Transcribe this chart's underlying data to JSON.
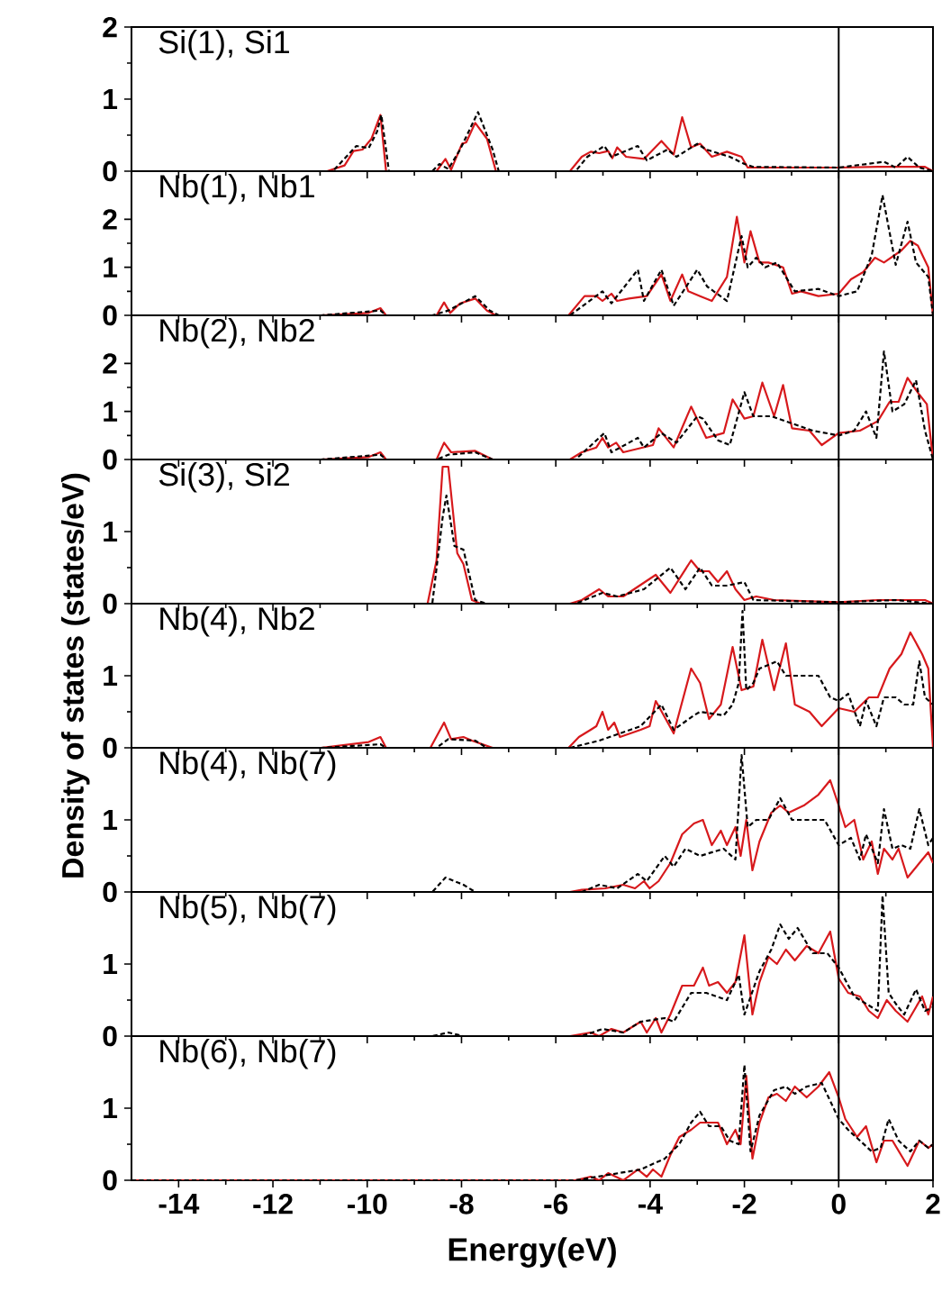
{
  "chart_data": [
    {
      "type": "line",
      "title": "Si(1), Si1",
      "xlim": [
        -15,
        2
      ],
      "xticks": [
        -14,
        -12,
        -10,
        -8,
        -6,
        -4,
        -2,
        0,
        2
      ],
      "ylim": [
        0,
        2
      ],
      "yticks": [
        0,
        1,
        2
      ],
      "tick_labels": "y",
      "ref_lines": [
        {
          "axis": "x",
          "value": 0,
          "color": "#000000"
        }
      ],
      "series": [
        {
          "color": "#d7191c",
          "line_style": "solid",
          "x": [
            -15,
            -10.85,
            -10.48,
            -10.29,
            -10.1,
            -9.91,
            -9.72,
            -9.6,
            -8.53,
            -8.34,
            -8.22,
            -7.99,
            -7.9,
            -7.71,
            -7.46,
            -7.27,
            -5.7,
            -5.45,
            -5.26,
            -5.08,
            -4.89,
            -4.8,
            -4.7,
            -4.51,
            -4.13,
            -3.76,
            -3.5,
            -3.32,
            -3.13,
            -2.94,
            -2.69,
            -2.37,
            -2.06,
            -1.93,
            -1.06,
            0,
            0.83,
            1.83,
            2
          ],
          "values": [
            0,
            0,
            0.08,
            0.28,
            0.3,
            0.45,
            0.78,
            0,
            0,
            0.17,
            0.02,
            0.38,
            0.4,
            0.67,
            0.45,
            0,
            0,
            0.2,
            0.27,
            0.25,
            0.28,
            0.18,
            0.33,
            0.2,
            0.17,
            0.42,
            0.23,
            0.75,
            0.33,
            0.38,
            0.2,
            0.27,
            0.2,
            0.05,
            0.05,
            0.05,
            0.06,
            0.06,
            0
          ]
        },
        {
          "color": "#000000",
          "line_style": "dashed",
          "x": [
            -15,
            -10.73,
            -10.23,
            -9.97,
            -9.79,
            -9.7,
            -9.54,
            -8.62,
            -8.47,
            -8.28,
            -8.03,
            -7.65,
            -7.34,
            -7.21,
            -5.58,
            -5.33,
            -4.97,
            -4.82,
            -4.26,
            -4.07,
            -3.63,
            -3.44,
            -3.0,
            -2.81,
            -2.31,
            -2.0,
            -1.81,
            0,
            0.96,
            1.21,
            1.46,
            1.71,
            2
          ],
          "values": [
            0,
            0,
            0.35,
            0.32,
            0.55,
            0.78,
            0,
            0,
            0.1,
            0.03,
            0.3,
            0.82,
            0.3,
            0,
            0,
            0.2,
            0.35,
            0.2,
            0.35,
            0.15,
            0.3,
            0.2,
            0.38,
            0.3,
            0.2,
            0.1,
            0.06,
            0.05,
            0.13,
            0.05,
            0.2,
            0.05,
            0
          ]
        }
      ]
    },
    {
      "type": "line",
      "title": "Nb(1), Nb1",
      "xlim": [
        -15,
        2
      ],
      "xticks": [
        -14,
        -12,
        -10,
        -8,
        -6,
        -4,
        -2,
        0,
        2
      ],
      "ylim": [
        0,
        3
      ],
      "yticks": [
        0,
        1,
        2
      ],
      "tick_labels": "y",
      "ref_lines": [
        {
          "axis": "x",
          "value": 0,
          "color": "#000000"
        }
      ],
      "series": [
        {
          "color": "#d7191c",
          "line_style": "solid",
          "x": [
            -15,
            -10.98,
            -9.97,
            -9.72,
            -9.6,
            -8.53,
            -8.37,
            -8.24,
            -8.03,
            -7.71,
            -7.46,
            -7.27,
            -5.73,
            -5.39,
            -5.14,
            -5.01,
            -4.82,
            -4.7,
            -4.45,
            -4.07,
            -3.76,
            -3.57,
            -3.32,
            -3.19,
            -2.94,
            -2.69,
            -2.37,
            -2.16,
            -2.0,
            -1.87,
            -1.68,
            -1.49,
            -1.18,
            -0.99,
            -0.8,
            -0.43,
            0,
            0.26,
            0.52,
            0.77,
            0.96,
            1.33,
            1.52,
            1.68,
            1.9,
            2
          ],
          "values": [
            0,
            0,
            0.05,
            0.15,
            0,
            0,
            0.27,
            0.05,
            0.25,
            0.35,
            0.1,
            0,
            0,
            0.4,
            0.4,
            0.3,
            0.45,
            0.3,
            0.35,
            0.4,
            0.85,
            0.3,
            0.85,
            0.5,
            0.4,
            0.3,
            0.8,
            2.05,
            1.1,
            1.75,
            1.1,
            1.1,
            1.0,
            0.45,
            0.5,
            0.4,
            0.45,
            0.75,
            0.9,
            1.2,
            1.1,
            1.35,
            1.55,
            1.45,
            1.0,
            0
          ]
        },
        {
          "color": "#000000",
          "line_style": "dashed",
          "x": [
            -15,
            -10.98,
            -9.72,
            -9.6,
            -8.62,
            -8.28,
            -7.71,
            -7.4,
            -7.21,
            -5.7,
            -5.01,
            -4.82,
            -4.26,
            -4.13,
            -3.76,
            -3.5,
            -3.0,
            -2.79,
            -2.37,
            -2.06,
            -1.93,
            -1.75,
            -1.56,
            -1.31,
            -0.93,
            -0.43,
            0,
            0.39,
            0.7,
            0.93,
            1.21,
            1.46,
            1.64,
            1.9,
            2
          ],
          "values": [
            0,
            0,
            0.1,
            0,
            0,
            0.1,
            0.4,
            0.1,
            0,
            0,
            0.5,
            0.25,
            0.95,
            0.3,
            0.95,
            0.2,
            0.95,
            0.6,
            0.3,
            1.65,
            1.0,
            1.2,
            1.0,
            1.1,
            0.5,
            0.55,
            0.4,
            0.5,
            1.25,
            2.5,
            1.05,
            1.95,
            1.1,
            0.8,
            0
          ]
        }
      ]
    },
    {
      "type": "line",
      "title": "Nb(2), Nb2",
      "xlim": [
        -15,
        2
      ],
      "xticks": [
        -14,
        -12,
        -10,
        -8,
        -6,
        -4,
        -2,
        0,
        2
      ],
      "ylim": [
        0,
        3
      ],
      "yticks": [
        0,
        1,
        2
      ],
      "tick_labels": "y",
      "ref_lines": [
        {
          "axis": "x",
          "value": 0,
          "color": "#000000"
        }
      ],
      "series": [
        {
          "color": "#d7191c",
          "line_style": "solid",
          "x": [
            -15,
            -10.98,
            -9.97,
            -9.72,
            -9.6,
            -8.53,
            -8.37,
            -8.22,
            -7.71,
            -7.34,
            -5.7,
            -5.45,
            -5.14,
            -5.01,
            -4.89,
            -4.72,
            -4.57,
            -3.94,
            -3.82,
            -3.5,
            -3.13,
            -2.81,
            -2.44,
            -2.25,
            -2.0,
            -1.81,
            -1.62,
            -1.37,
            -1.18,
            -0.99,
            -0.62,
            -0.36,
            0,
            0.45,
            0.83,
            1.08,
            1.27,
            1.46,
            1.71,
            1.87,
            2
          ],
          "values": [
            0,
            0,
            0.05,
            0.15,
            0,
            0,
            0.35,
            0.15,
            0.18,
            0,
            0,
            0.15,
            0.25,
            0.45,
            0.25,
            0.35,
            0.15,
            0.3,
            0.65,
            0.25,
            1.1,
            0.45,
            0.55,
            1.25,
            0.85,
            0.9,
            1.6,
            0.9,
            1.55,
            0.65,
            0.6,
            0.3,
            0.55,
            0.6,
            0.8,
            1.2,
            1.2,
            1.7,
            1.35,
            1.15,
            0
          ]
        },
        {
          "color": "#000000",
          "line_style": "dashed",
          "x": [
            -15,
            -10.98,
            -9.72,
            -9.6,
            -8.53,
            -8.28,
            -7.71,
            -7.34,
            -5.58,
            -4.97,
            -4.82,
            -4.26,
            -4.13,
            -3.76,
            -3.44,
            -3.0,
            -2.88,
            -2.56,
            -2.31,
            -2.0,
            -1.81,
            -1.43,
            -0.99,
            -0.55,
            0,
            0.33,
            0.58,
            0.8,
            0.96,
            1.14,
            1.39,
            1.64,
            1.83,
            2
          ],
          "values": [
            0,
            0,
            0.1,
            0,
            0,
            0.1,
            0.15,
            0,
            0,
            0.55,
            0.15,
            0.45,
            0.25,
            0.55,
            0.35,
            0.9,
            0.85,
            0.4,
            0.3,
            1.4,
            0.9,
            0.9,
            0.75,
            0.6,
            0.5,
            0.6,
            1.0,
            0.45,
            2.25,
            1.0,
            1.15,
            1.65,
            0.6,
            0
          ]
        }
      ]
    },
    {
      "type": "line",
      "title": "Si(3), Si2",
      "xlim": [
        -15,
        2
      ],
      "xticks": [
        -14,
        -12,
        -10,
        -8,
        -6,
        -4,
        -2,
        0,
        2
      ],
      "ylim": [
        0,
        2
      ],
      "yticks": [
        0,
        1
      ],
      "tick_labels": "y",
      "ref_lines": [
        {
          "axis": "x",
          "value": 0,
          "color": "#000000"
        }
      ],
      "series": [
        {
          "color": "#d7191c",
          "line_style": "solid",
          "x": [
            -15,
            -8.72,
            -8.53,
            -8.4,
            -8.28,
            -8.09,
            -7.96,
            -7.78,
            -7.59,
            -5.7,
            -5.45,
            -5.08,
            -4.89,
            -4.57,
            -3.88,
            -3.57,
            -3.13,
            -2.94,
            -2.75,
            -2.56,
            -2.37,
            -2.19,
            -2.0,
            -1.75,
            -1.37,
            0,
            0.83,
            1.83,
            2
          ],
          "values": [
            0,
            0,
            0.6,
            1.9,
            1.9,
            0.7,
            0.55,
            0.05,
            0,
            0,
            0.05,
            0.2,
            0.1,
            0.1,
            0.4,
            0.15,
            0.6,
            0.45,
            0.45,
            0.3,
            0.45,
            0.2,
            0.05,
            0.1,
            0.05,
            0.02,
            0.05,
            0.05,
            0
          ]
        },
        {
          "color": "#000000",
          "line_style": "dashed",
          "x": [
            -15,
            -8.62,
            -8.4,
            -8.32,
            -8.15,
            -7.96,
            -7.71,
            -7.46,
            -5.58,
            -5.01,
            -4.7,
            -4.13,
            -3.57,
            -3.25,
            -2.94,
            -2.69,
            -2.37,
            -2.0,
            -1.81,
            0,
            1.21,
            2
          ],
          "values": [
            0,
            0,
            1.2,
            1.5,
            0.8,
            0.75,
            0.05,
            0,
            0,
            0.15,
            0.1,
            0.2,
            0.5,
            0.2,
            0.5,
            0.25,
            0.25,
            0.3,
            0.05,
            0.02,
            0.05,
            0
          ]
        }
      ]
    },
    {
      "type": "line",
      "title": "Nb(4), Nb2",
      "ylabel": "Density of states (states/eV)",
      "xlim": [
        -15,
        2
      ],
      "xticks": [
        -14,
        -12,
        -10,
        -8,
        -6,
        -4,
        -2,
        0,
        2
      ],
      "ylim": [
        0,
        2
      ],
      "yticks": [
        0,
        1
      ],
      "tick_labels": "y",
      "ref_lines": [
        {
          "axis": "x",
          "value": 0,
          "color": "#000000"
        }
      ],
      "series": [
        {
          "color": "#d7191c",
          "line_style": "solid",
          "x": [
            -15,
            -10.98,
            -9.97,
            -9.72,
            -9.6,
            -8.66,
            -8.37,
            -8.22,
            -7.96,
            -7.78,
            -7.34,
            -5.73,
            -5.51,
            -5.26,
            -5.14,
            -5.01,
            -4.89,
            -4.76,
            -4.64,
            -4.2,
            -4.01,
            -3.88,
            -3.5,
            -3.13,
            -2.94,
            -2.75,
            -2.5,
            -2.25,
            -2.06,
            -1.81,
            -1.62,
            -1.37,
            -1.12,
            -0.93,
            -0.62,
            -0.36,
            0,
            0.33,
            0.64,
            0.83,
            1.08,
            1.33,
            1.52,
            1.77,
            1.9,
            2
          ],
          "values": [
            0,
            0,
            0.08,
            0.15,
            0,
            0,
            0.35,
            0.12,
            0.15,
            0.1,
            0,
            0,
            0.15,
            0.25,
            0.3,
            0.5,
            0.25,
            0.35,
            0.15,
            0.25,
            0.3,
            0.65,
            0.2,
            1.1,
            0.9,
            0.4,
            0.6,
            1.4,
            0.8,
            0.85,
            1.5,
            0.8,
            1.45,
            0.6,
            0.5,
            0.3,
            0.55,
            0.5,
            0.7,
            0.7,
            1.1,
            1.3,
            1.6,
            1.3,
            1.1,
            0
          ]
        },
        {
          "color": "#000000",
          "line_style": "dashed",
          "x": [
            -15,
            -10.98,
            -9.72,
            -9.6,
            -8.53,
            -8.28,
            -7.71,
            -7.46,
            -5.7,
            -5.08,
            -4.2,
            -3.76,
            -3.5,
            -3.07,
            -2.94,
            -2.44,
            -2.25,
            -2.12,
            -2.04,
            -1.96,
            -1.81,
            -1.68,
            -1.31,
            -1.12,
            -0.43,
            -0.18,
            0,
            0.2,
            0.45,
            0.58,
            0.8,
            0.96,
            1.21,
            1.39,
            1.58,
            1.71,
            1.83,
            2
          ],
          "values": [
            0,
            0,
            0.05,
            0,
            0,
            0.12,
            0.1,
            0,
            0,
            0.1,
            0.3,
            0.6,
            0.25,
            0.45,
            0.5,
            0.45,
            0.6,
            0.9,
            1.9,
            0.8,
            0.9,
            1.1,
            1.2,
            1.0,
            1.0,
            0.7,
            0.65,
            0.75,
            0.3,
            0.65,
            0.3,
            0.7,
            0.7,
            0.6,
            0.6,
            1.2,
            0.7,
            0.6
          ]
        }
      ]
    },
    {
      "type": "line",
      "title": "Nb(4), Nb(7)",
      "xlim": [
        -15,
        2
      ],
      "xticks": [
        -14,
        -12,
        -10,
        -8,
        -6,
        -4,
        -2,
        0,
        2
      ],
      "ylim": [
        0,
        2
      ],
      "yticks": [
        0,
        1
      ],
      "tick_labels": "y",
      "ref_lines": [
        {
          "axis": "x",
          "value": 0,
          "color": "#000000"
        }
      ],
      "series": [
        {
          "color": "#d7191c",
          "line_style": "solid",
          "x": [
            -15,
            -5.7,
            -5.45,
            -4.95,
            -4.57,
            -4.32,
            -4.13,
            -4.01,
            -3.82,
            -3.57,
            -3.32,
            -3.07,
            -2.88,
            -2.69,
            -2.5,
            -2.37,
            -2.19,
            -2.08,
            -1.96,
            -1.83,
            -1.68,
            -1.43,
            -1.24,
            -1.06,
            -0.74,
            -0.43,
            -0.18,
            0,
            0.14,
            0.33,
            0.52,
            0.7,
            0.83,
            0.96,
            1.14,
            1.27,
            1.46,
            1.71,
            1.9,
            2
          ],
          "values": [
            0,
            0,
            0.03,
            0.05,
            0.1,
            0.05,
            0.15,
            0.05,
            0.15,
            0.4,
            0.8,
            0.95,
            1.0,
            0.65,
            0.85,
            0.65,
            0.9,
            0.5,
            1.0,
            0.3,
            0.7,
            1.1,
            1.2,
            1.1,
            1.2,
            1.35,
            1.55,
            1.2,
            0.9,
            1.0,
            0.45,
            0.7,
            0.25,
            0.6,
            0.45,
            0.6,
            0.2,
            0.4,
            0.55,
            0.4
          ]
        },
        {
          "color": "#000000",
          "line_style": "dashed",
          "x": [
            -15,
            -8.62,
            -8.34,
            -7.96,
            -7.71,
            -5.45,
            -5.08,
            -4.7,
            -4.26,
            -4.07,
            -3.69,
            -3.5,
            -3.25,
            -2.94,
            -2.44,
            -2.19,
            -2.06,
            -1.93,
            -1.75,
            -1.49,
            -1.24,
            -0.99,
            -0.68,
            -0.3,
            0,
            0.26,
            0.45,
            0.58,
            0.83,
            0.96,
            1.14,
            1.33,
            1.52,
            1.71,
            1.9,
            2
          ],
          "values": [
            0,
            0,
            0.2,
            0.1,
            0,
            0,
            0.1,
            0.05,
            0.25,
            0.15,
            0.5,
            0.35,
            0.6,
            0.5,
            0.6,
            0.45,
            1.9,
            0.9,
            1.0,
            1.0,
            1.3,
            1.0,
            1.0,
            1.0,
            0.65,
            0.75,
            0.45,
            0.8,
            0.4,
            1.15,
            0.6,
            0.65,
            0.6,
            1.15,
            0.65,
            0.75
          ]
        }
      ]
    },
    {
      "type": "line",
      "title": "Nb(5), Nb(7)",
      "xlim": [
        -15,
        2
      ],
      "xticks": [
        -14,
        -12,
        -10,
        -8,
        -6,
        -4,
        -2,
        0,
        2
      ],
      "ylim": [
        0,
        2
      ],
      "yticks": [
        0,
        1
      ],
      "tick_labels": "y",
      "ref_lines": [
        {
          "axis": "x",
          "value": 0,
          "color": "#000000"
        }
      ],
      "series": [
        {
          "color": "#d7191c",
          "line_style": "solid",
          "x": [
            -15,
            -5.7,
            -5.26,
            -5.08,
            -4.82,
            -4.57,
            -4.2,
            -4.07,
            -3.88,
            -3.76,
            -3.57,
            -3.32,
            -3.07,
            -2.88,
            -2.75,
            -2.56,
            -2.37,
            -2.19,
            -2.0,
            -1.83,
            -1.68,
            -1.49,
            -1.31,
            -1.12,
            -0.93,
            -0.68,
            -0.43,
            -0.18,
            0,
            0.2,
            0.45,
            0.64,
            0.83,
            1.02,
            1.21,
            1.46,
            1.77,
            1.9,
            2
          ],
          "values": [
            0,
            0,
            0.05,
            0,
            0.1,
            0.05,
            0.2,
            0.05,
            0.25,
            0.05,
            0.3,
            0.7,
            0.7,
            0.95,
            0.7,
            0.75,
            0.6,
            0.75,
            1.4,
            0.3,
            0.75,
            1.1,
            1.0,
            1.2,
            1.05,
            1.25,
            1.15,
            1.45,
            0.8,
            0.6,
            0.55,
            0.35,
            0.25,
            0.5,
            0.35,
            0.2,
            0.55,
            0.3,
            0.55
          ]
        },
        {
          "color": "#000000",
          "line_style": "dashed",
          "x": [
            -15,
            -8.62,
            -8.28,
            -7.96,
            -5.45,
            -5.01,
            -4.57,
            -4.2,
            -3.69,
            -3.5,
            -3.13,
            -2.81,
            -2.37,
            -2.12,
            -2.0,
            -1.68,
            -1.43,
            -1.24,
            -1.06,
            -0.87,
            -0.55,
            -0.24,
            0,
            0.33,
            0.58,
            0.83,
            0.93,
            1.06,
            1.21,
            1.39,
            1.64,
            1.83,
            2
          ],
          "values": [
            0,
            0,
            0.05,
            0,
            0,
            0.1,
            0.05,
            0.2,
            0.25,
            0.2,
            0.6,
            0.6,
            0.5,
            0.85,
            0.3,
            0.9,
            1.2,
            1.55,
            1.35,
            1.5,
            1.15,
            1.15,
            0.95,
            0.55,
            0.45,
            0.35,
            1.95,
            0.6,
            0.45,
            0.3,
            0.65,
            0.35,
            0.4
          ]
        }
      ]
    },
    {
      "type": "line",
      "title": "Nb(6), Nb(7)",
      "xlabel": "Energy(eV)",
      "xlim": [
        -15,
        2
      ],
      "xticks": [
        -14,
        -12,
        -10,
        -8,
        -6,
        -4,
        -2,
        0,
        2
      ],
      "ylim": [
        0,
        2
      ],
      "yticks": [
        0,
        1
      ],
      "ref_lines": [
        {
          "axis": "x",
          "value": 0,
          "color": "#000000"
        }
      ],
      "series": [
        {
          "color": "#d7191c",
          "line_style": "solid",
          "x": [
            -15,
            -5.58,
            -5.26,
            -5.08,
            -4.89,
            -4.57,
            -4.26,
            -4.07,
            -3.94,
            -3.76,
            -3.57,
            -3.38,
            -3.13,
            -2.94,
            -2.75,
            -2.56,
            -2.37,
            -2.19,
            -2.08,
            -1.96,
            -1.83,
            -1.68,
            -1.49,
            -1.31,
            -1.12,
            -0.93,
            -0.68,
            -0.43,
            -0.2,
            0,
            0.14,
            0.39,
            0.58,
            0.8,
            0.96,
            1.14,
            1.46,
            1.71,
            1.9,
            2
          ],
          "values": [
            0,
            0,
            0.05,
            0,
            0.1,
            0,
            0.15,
            0.05,
            0.15,
            0.05,
            0.35,
            0.6,
            0.7,
            0.8,
            0.8,
            0.8,
            0.5,
            0.7,
            0.5,
            1.45,
            0.3,
            0.8,
            1.15,
            1.2,
            1.1,
            1.3,
            1.15,
            1.3,
            1.5,
            1.15,
            0.85,
            0.6,
            0.75,
            0.25,
            0.55,
            0.55,
            0.2,
            0.55,
            0.45,
            0.5
          ]
        },
        {
          "color": "#000000",
          "line_style": "dashed",
          "x": [
            -15,
            -5.58,
            -4.2,
            -3.69,
            -3.38,
            -3.13,
            -2.94,
            -2.75,
            -2.5,
            -2.31,
            -2.12,
            -2.0,
            -1.87,
            -1.68,
            -1.37,
            -1.12,
            -0.93,
            -0.68,
            -0.36,
            0,
            0.2,
            0.45,
            0.7,
            0.89,
            1.06,
            1.27,
            1.52,
            1.71,
            1.9,
            2
          ],
          "values": [
            0,
            0,
            0.15,
            0.3,
            0.5,
            0.8,
            0.95,
            0.75,
            0.75,
            0.55,
            0.5,
            1.6,
            0.4,
            0.9,
            1.25,
            1.3,
            1.2,
            1.3,
            1.35,
            0.85,
            0.7,
            0.55,
            0.4,
            0.45,
            0.85,
            0.55,
            0.4,
            0.55,
            0.45,
            0.5
          ]
        }
      ]
    }
  ]
}
